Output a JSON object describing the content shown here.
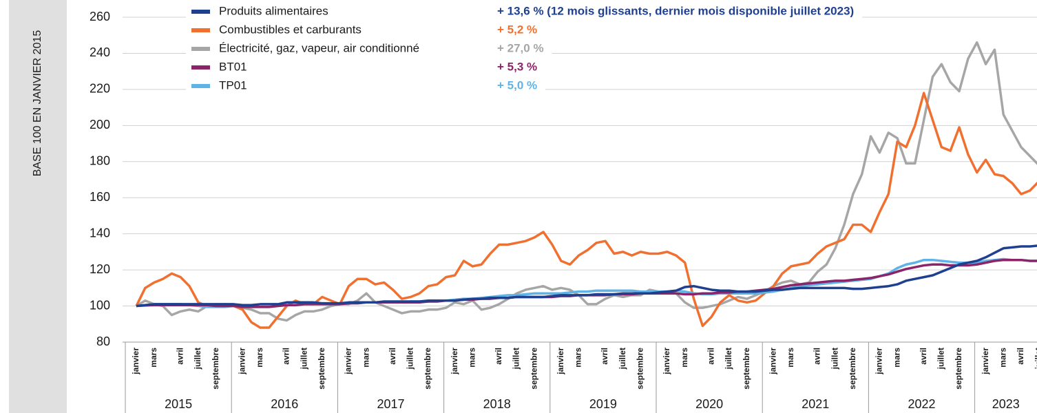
{
  "chart_data": {
    "type": "line",
    "ylabel": "BASE 100 EN JANVIER 2015",
    "ylim": [
      80,
      260
    ],
    "yticks": [
      80,
      100,
      120,
      140,
      160,
      180,
      200,
      220,
      240,
      260
    ],
    "grid": true,
    "years": [
      "2015",
      "2016",
      "2017",
      "2018",
      "2019",
      "2020",
      "2021",
      "2022",
      "2023"
    ],
    "categories": [
      "janvier",
      null,
      "mars",
      null,
      null,
      "avril",
      null,
      "juillet",
      null,
      "septembre",
      null,
      null,
      "janvier",
      null,
      "mars",
      null,
      null,
      "avril",
      null,
      "juillet",
      null,
      "septembre",
      null,
      null,
      "janvier",
      null,
      "mars",
      null,
      null,
      "avril",
      null,
      "juillet",
      null,
      "septembre",
      null,
      null,
      "janvier",
      null,
      "mars",
      null,
      null,
      "avril",
      null,
      "juillet",
      null,
      "septembre",
      null,
      null,
      "janvier",
      null,
      "mars",
      null,
      null,
      "avril",
      null,
      "juillet",
      null,
      "septembre",
      null,
      null,
      "janvier",
      null,
      "mars",
      null,
      null,
      "avril",
      null,
      "juillet",
      null,
      "septembre",
      null,
      null,
      "janvier",
      null,
      "mars",
      null,
      null,
      "avril",
      null,
      "juillet",
      null,
      "septembre",
      null,
      null,
      "janvier",
      null,
      "mars",
      null,
      null,
      "avril",
      null,
      "juillet",
      null,
      "septembre",
      null,
      null,
      "janvier",
      null,
      "mars",
      null,
      "avril",
      null,
      "juillet"
    ],
    "series": [
      {
        "name": "Produits alimentaires",
        "change_label": "+ 13,6 % (12 mois glissants, dernier mois disponible juillet 2023)",
        "color": "#1f3f8f",
        "values": [
          100,
          100.5,
          101,
          101,
          101,
          101,
          101,
          101,
          101,
          101,
          101,
          101,
          100.5,
          100.5,
          101,
          101,
          101,
          102,
          102,
          102,
          102,
          101.5,
          101.5,
          101.5,
          102,
          102,
          102,
          102,
          102.5,
          102.5,
          102.5,
          102.5,
          102.5,
          103,
          103,
          103,
          103,
          103.5,
          104,
          104,
          104.5,
          104.5,
          104.5,
          105,
          105,
          105,
          105,
          105.5,
          106,
          106,
          106,
          106,
          106.5,
          106.5,
          106.5,
          107,
          107,
          107,
          107,
          107.5,
          108,
          108.5,
          110.5,
          111,
          110,
          109,
          108.5,
          108.5,
          108,
          108,
          108,
          108.5,
          109,
          109,
          109.5,
          110,
          110,
          110,
          110,
          110,
          110,
          109.5,
          109.5,
          110,
          110.5,
          111,
          112,
          114,
          115,
          116,
          117,
          119,
          121,
          123,
          124,
          125,
          127,
          129.5,
          132,
          132.5,
          133,
          133,
          133.5
        ]
      },
      {
        "name": "Combustibles et carburants",
        "change_label": "+ 5,2 %",
        "color": "#f07030",
        "values": [
          100,
          110,
          113,
          115,
          118,
          116,
          111,
          102,
          100,
          100,
          101,
          100,
          98,
          91,
          88,
          88,
          94,
          100,
          103,
          101,
          101,
          105,
          103,
          101,
          111,
          115,
          115,
          112,
          113,
          109,
          104,
          105,
          107,
          111,
          112,
          116,
          117,
          125,
          122,
          123,
          129,
          134,
          134,
          135,
          136,
          138,
          141,
          134,
          125,
          123,
          128,
          131,
          135,
          136,
          129,
          130,
          128,
          130,
          129,
          129,
          130,
          128,
          124,
          104,
          89,
          94,
          102,
          106,
          103,
          102,
          103,
          107,
          111,
          118,
          122,
          123,
          124,
          129,
          133,
          135,
          137,
          145,
          145,
          141,
          152,
          162,
          191,
          188,
          200,
          218,
          203,
          188,
          186,
          199,
          184,
          174,
          181,
          173,
          172,
          168,
          162,
          164,
          169
        ]
      },
      {
        "name": "Électricité, gaz, vapeur, air conditionné",
        "change_label": "+ 27,0 %",
        "color": "#a6a6a6",
        "values": [
          100,
          103,
          101,
          100,
          95,
          97,
          98,
          97,
          100,
          101,
          100,
          100,
          99,
          98,
          96,
          96,
          93,
          92,
          95,
          97,
          97,
          98,
          100,
          101,
          101,
          103,
          107,
          102,
          100,
          98,
          96,
          97,
          97,
          98,
          98,
          99,
          102,
          101,
          103,
          98,
          99,
          101,
          104,
          107,
          109,
          110,
          111,
          109,
          110,
          109,
          106,
          101,
          101,
          104,
          106,
          105,
          106,
          106,
          109,
          108,
          108,
          107,
          102,
          99,
          99,
          100,
          101,
          103,
          105,
          104,
          106,
          108,
          111,
          113,
          114,
          112,
          113,
          119,
          123,
          132,
          145,
          162,
          173,
          194,
          185,
          196,
          193,
          179,
          179,
          203,
          227,
          234,
          224,
          219,
          237,
          246,
          234,
          242,
          206,
          197,
          188,
          183,
          178
        ]
      },
      {
        "name": "BT01",
        "change_label": "+ 5,3 %",
        "color": "#8b2468",
        "values": [
          100,
          100.3,
          100.5,
          100.5,
          100.5,
          100.5,
          100.5,
          100.5,
          100.5,
          100,
          100,
          100,
          99.5,
          99.5,
          99.5,
          99.5,
          100,
          100.5,
          100.5,
          101,
          101,
          101,
          101,
          101,
          101.5,
          101.5,
          102,
          102,
          102,
          102,
          102,
          102,
          102,
          102.5,
          102.5,
          103,
          103,
          103.5,
          103.5,
          104,
          104,
          104.5,
          104.5,
          105,
          105,
          105,
          105,
          105,
          105.5,
          105.5,
          106,
          106,
          106,
          106,
          106.5,
          106.5,
          106.5,
          107,
          107,
          107,
          107,
          107,
          106.5,
          106.5,
          107,
          107,
          107.5,
          107.5,
          108,
          108,
          108.5,
          109,
          109.5,
          110.5,
          111.5,
          112,
          112.5,
          113,
          113.5,
          114,
          114,
          114.5,
          115,
          115.5,
          116.5,
          117.5,
          119,
          120.5,
          121.5,
          122.5,
          123,
          123,
          122.5,
          122.5,
          122.5,
          123,
          124,
          125,
          125.5,
          125.5,
          125.5,
          125,
          125
        ]
      },
      {
        "name": "TP01",
        "change_label": "+ 5,0 %",
        "color": "#5fb3e6",
        "values": [
          100,
          100.5,
          101,
          101,
          101,
          101,
          100.5,
          100,
          99.5,
          99.5,
          99.5,
          100,
          100,
          99.5,
          99.5,
          99.5,
          100,
          100.5,
          100.5,
          101,
          101,
          101,
          101,
          101,
          101.5,
          102,
          102,
          102,
          102,
          102,
          102,
          102.5,
          102.5,
          102.5,
          103,
          103,
          103.5,
          104,
          104,
          104.5,
          105,
          105.5,
          106,
          106,
          106.5,
          107,
          107,
          107,
          107,
          107.5,
          108,
          108,
          108.5,
          108.5,
          108.5,
          108.5,
          108.5,
          108,
          108,
          108,
          108,
          108.5,
          108,
          107,
          106.5,
          106.5,
          107,
          107,
          107,
          107,
          107,
          107.5,
          108,
          109,
          110,
          111,
          111.5,
          112,
          112.5,
          113,
          113.5,
          114,
          114.5,
          115,
          116.5,
          118,
          121,
          123,
          124,
          125.5,
          125.5,
          125,
          124.5,
          124,
          124,
          124,
          125,
          125.5,
          126,
          125.5,
          125.5,
          125,
          125
        ]
      }
    ]
  }
}
